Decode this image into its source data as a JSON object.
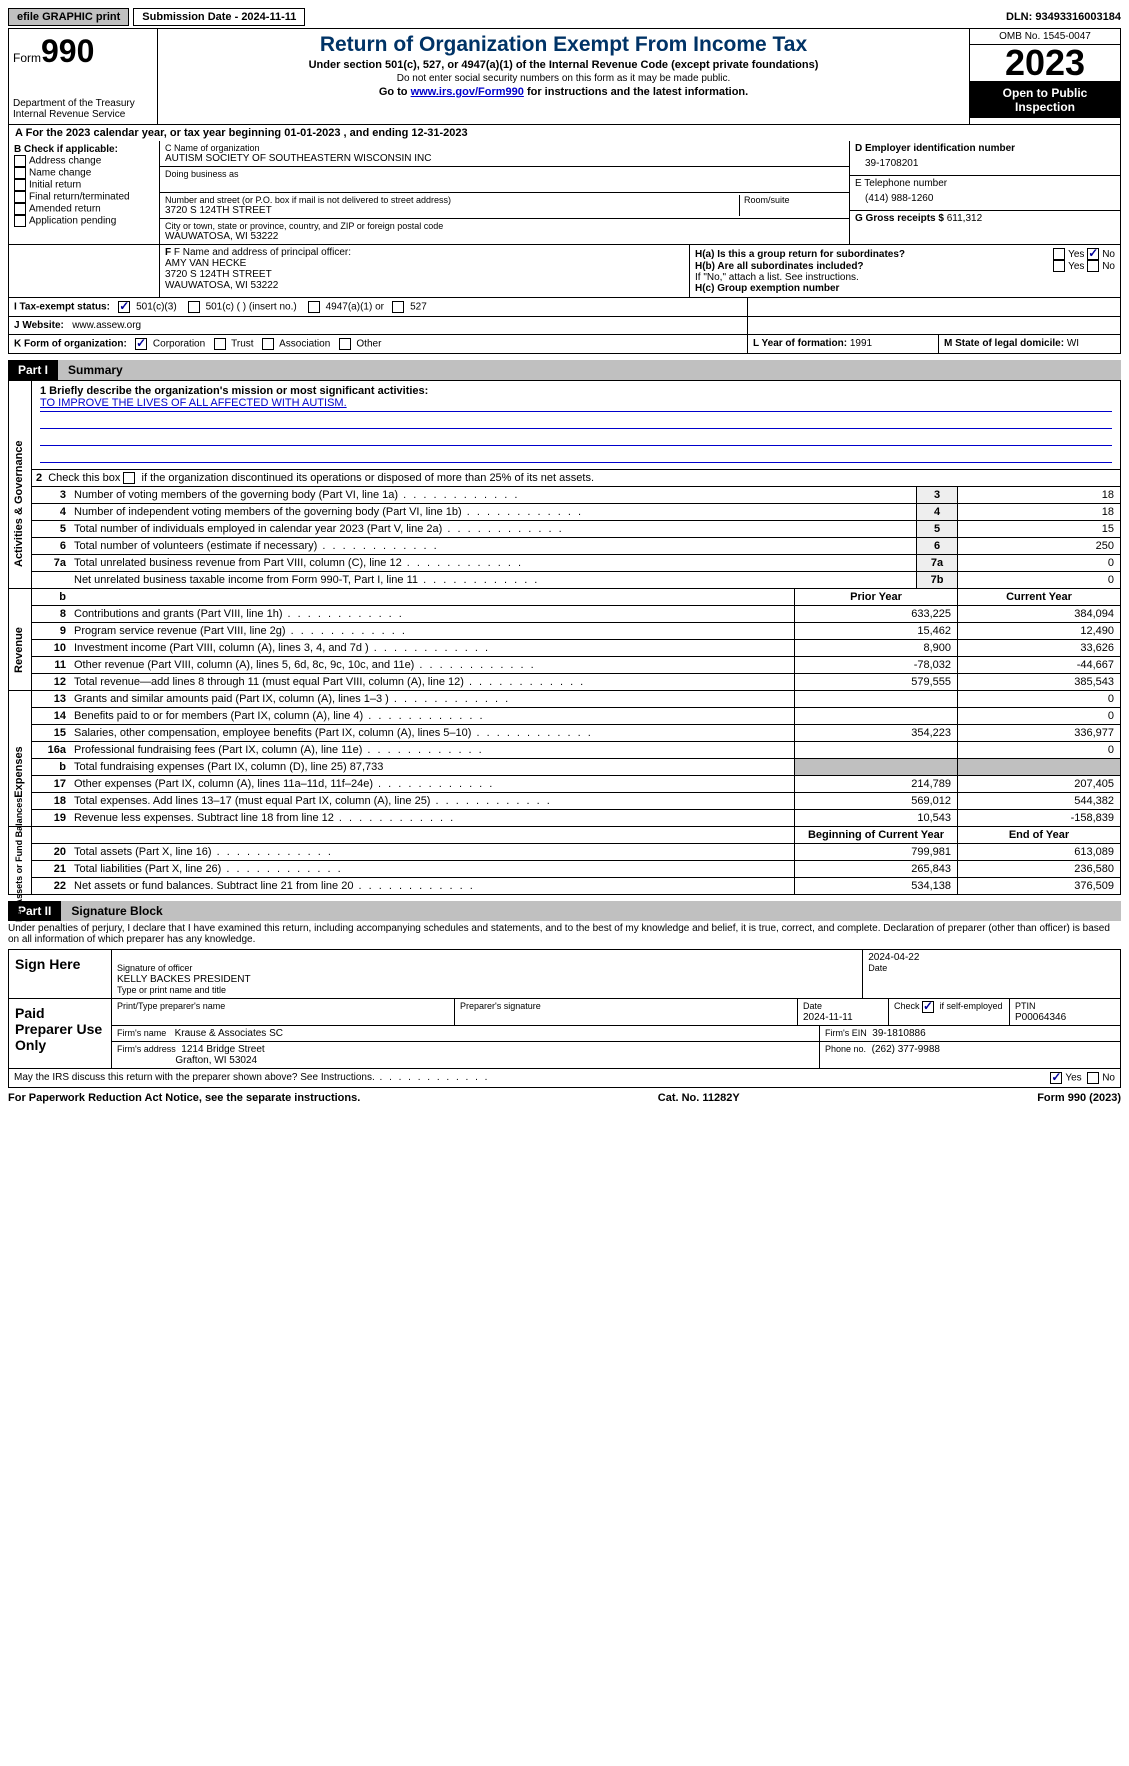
{
  "topbar": {
    "efile": "efile GRAPHIC print",
    "submission": "Submission Date - 2024-11-11",
    "dln": "DLN: 93493316003184"
  },
  "header": {
    "form_label": "Form",
    "form_num": "990",
    "dept": "Department of the Treasury\nInternal Revenue Service",
    "title": "Return of Organization Exempt From Income Tax",
    "sub1": "Under section 501(c), 527, or 4947(a)(1) of the Internal Revenue Code (except private foundations)",
    "sub2": "Do not enter social security numbers on this form as it may be made public.",
    "sub3_pre": "Go to ",
    "sub3_link": "www.irs.gov/Form990",
    "sub3_post": " for instructions and the latest information.",
    "omb": "OMB No. 1545-0047",
    "year": "2023",
    "open": "Open to Public Inspection"
  },
  "period": {
    "text_pre": "For the 2023 calendar year, or tax year beginning ",
    "begin": "01-01-2023",
    "mid": " , and ending ",
    "end": "12-31-2023"
  },
  "boxB": {
    "title": "B Check if applicable:",
    "items": [
      "Address change",
      "Name change",
      "Initial return",
      "Final return/terminated",
      "Amended return",
      "Application pending"
    ]
  },
  "boxC": {
    "label_name": "C Name of organization",
    "name": "AUTISM SOCIETY OF SOUTHEASTERN WISCONSIN INC",
    "dba_label": "Doing business as",
    "addr_label": "Number and street (or P.O. box if mail is not delivered to street address)",
    "addr": "3720 S 124TH STREET",
    "room_label": "Room/suite",
    "city_label": "City or town, state or province, country, and ZIP or foreign postal code",
    "city": "WAUWATOSA, WI  53222"
  },
  "boxD": {
    "label": "D Employer identification number",
    "val": "39-1708201"
  },
  "boxE": {
    "label": "E Telephone number",
    "val": "(414) 988-1260"
  },
  "boxG": {
    "label": "G Gross receipts $",
    "val": "611,312"
  },
  "boxF": {
    "label": "F  Name and address of principal officer:",
    "name": "AMY VAN HECKE",
    "addr1": "3720 S 124TH STREET",
    "addr2": "WAUWATOSA, WI  53222"
  },
  "boxH": {
    "a_label": "H(a)  Is this a group return for subordinates?",
    "a_yes": "Yes",
    "a_no": "No",
    "b_label": "H(b)  Are all subordinates included?",
    "b_note": "If \"No,\" attach a list. See instructions.",
    "c_label": "H(c)  Group exemption number"
  },
  "boxI": {
    "label": "I   Tax-exempt status:",
    "o1": "501(c)(3)",
    "o2": "501(c) (  ) (insert no.)",
    "o3": "4947(a)(1) or",
    "o4": "527"
  },
  "boxJ": {
    "label": "J   Website:",
    "val": "www.assew.org"
  },
  "boxK": {
    "label": "K Form of organization:",
    "opts": [
      "Corporation",
      "Trust",
      "Association",
      "Other"
    ]
  },
  "boxL": {
    "label": "L Year of formation:",
    "val": "1991"
  },
  "boxM": {
    "label": "M State of legal domicile:",
    "val": "WI"
  },
  "part1": {
    "num": "Part I",
    "title": "Summary"
  },
  "mission": {
    "q": "1   Briefly describe the organization's mission or most significant activities:",
    "a": "TO IMPROVE THE LIVES OF ALL AFFECTED WITH AUTISM."
  },
  "line2": "2   Check this box      if the organization discontinued its operations or disposed of more than 25% of its net assets.",
  "sidelabels": {
    "gov": "Activities & Governance",
    "rev": "Revenue",
    "exp": "Expenses",
    "net": "Net Assets or Fund Balances"
  },
  "gov_rows": [
    {
      "n": "3",
      "t": "Number of voting members of the governing body (Part VI, line 1a)",
      "box": "3",
      "v": "18"
    },
    {
      "n": "4",
      "t": "Number of independent voting members of the governing body (Part VI, line 1b)",
      "box": "4",
      "v": "18"
    },
    {
      "n": "5",
      "t": "Total number of individuals employed in calendar year 2023 (Part V, line 2a)",
      "box": "5",
      "v": "15"
    },
    {
      "n": "6",
      "t": "Total number of volunteers (estimate if necessary)",
      "box": "6",
      "v": "250"
    },
    {
      "n": "7a",
      "t": "Total unrelated business revenue from Part VIII, column (C), line 12",
      "box": "7a",
      "v": "0"
    },
    {
      "n": "",
      "t": "Net unrelated business taxable income from Form 990-T, Part I, line 11",
      "box": "7b",
      "v": "0"
    }
  ],
  "col_hdr": {
    "b": "b",
    "prior": "Prior Year",
    "current": "Current Year"
  },
  "rev_rows": [
    {
      "n": "8",
      "t": "Contributions and grants (Part VIII, line 1h)",
      "p": "633,225",
      "c": "384,094"
    },
    {
      "n": "9",
      "t": "Program service revenue (Part VIII, line 2g)",
      "p": "15,462",
      "c": "12,490"
    },
    {
      "n": "10",
      "t": "Investment income (Part VIII, column (A), lines 3, 4, and 7d )",
      "p": "8,900",
      "c": "33,626"
    },
    {
      "n": "11",
      "t": "Other revenue (Part VIII, column (A), lines 5, 6d, 8c, 9c, 10c, and 11e)",
      "p": "-78,032",
      "c": "-44,667"
    },
    {
      "n": "12",
      "t": "Total revenue—add lines 8 through 11 (must equal Part VIII, column (A), line 12)",
      "p": "579,555",
      "c": "385,543"
    }
  ],
  "exp_rows": [
    {
      "n": "13",
      "t": "Grants and similar amounts paid (Part IX, column (A), lines 1–3 )",
      "p": "",
      "c": "0"
    },
    {
      "n": "14",
      "t": "Benefits paid to or for members (Part IX, column (A), line 4)",
      "p": "",
      "c": "0"
    },
    {
      "n": "15",
      "t": "Salaries, other compensation, employee benefits (Part IX, column (A), lines 5–10)",
      "p": "354,223",
      "c": "336,977"
    },
    {
      "n": "16a",
      "t": "Professional fundraising fees (Part IX, column (A), line 11e)",
      "p": "",
      "c": "0"
    },
    {
      "n": "b",
      "t": "Total fundraising expenses (Part IX, column (D), line 25) 87,733",
      "p": "GRAY",
      "c": "GRAY"
    },
    {
      "n": "17",
      "t": "Other expenses (Part IX, column (A), lines 11a–11d, 11f–24e)",
      "p": "214,789",
      "c": "207,405"
    },
    {
      "n": "18",
      "t": "Total expenses. Add lines 13–17 (must equal Part IX, column (A), line 25)",
      "p": "569,012",
      "c": "544,382"
    },
    {
      "n": "19",
      "t": "Revenue less expenses. Subtract line 18 from line 12",
      "p": "10,543",
      "c": "-158,839"
    }
  ],
  "net_hdr": {
    "begin": "Beginning of Current Year",
    "end": "End of Year"
  },
  "net_rows": [
    {
      "n": "20",
      "t": "Total assets (Part X, line 16)",
      "p": "799,981",
      "c": "613,089"
    },
    {
      "n": "21",
      "t": "Total liabilities (Part X, line 26)",
      "p": "265,843",
      "c": "236,580"
    },
    {
      "n": "22",
      "t": "Net assets or fund balances. Subtract line 21 from line 20",
      "p": "534,138",
      "c": "376,509"
    }
  ],
  "part2": {
    "num": "Part II",
    "title": "Signature Block"
  },
  "perjury": "Under penalties of perjury, I declare that I have examined this return, including accompanying schedules and statements, and to the best of my knowledge and belief, it is true, correct, and complete. Declaration of preparer (other than officer) is based on all information of which preparer has any knowledge.",
  "sign": {
    "here": "Sign Here",
    "sig_label": "Signature of officer",
    "date_label": "Date",
    "date": "2024-04-22",
    "name": "KELLY BACKES PRESIDENT",
    "name_label": "Type or print name and title"
  },
  "paid": {
    "label": "Paid Preparer Use Only",
    "pname_label": "Print/Type preparer's name",
    "psig_label": "Preparer's signature",
    "pdate_label": "Date",
    "pdate": "2024-11-11",
    "check_label": "Check        if self-employed",
    "ptin_label": "PTIN",
    "ptin": "P00064346",
    "firm_label": "Firm's name",
    "firm": "Krause & Associates SC",
    "ein_label": "Firm's EIN",
    "ein": "39-1810886",
    "addr_label": "Firm's address",
    "addr1": "1214 Bridge Street",
    "addr2": "Grafton, WI  53024",
    "phone_label": "Phone no.",
    "phone": "(262) 377-9988"
  },
  "discuss": {
    "q": "May the IRS discuss this return with the preparer shown above? See Instructions.",
    "yes": "Yes",
    "no": "No"
  },
  "footer": {
    "left": "For Paperwork Reduction Act Notice, see the separate instructions.",
    "mid": "Cat. No. 11282Y",
    "right_pre": "Form ",
    "right_b": "990",
    "right_post": " (2023)"
  }
}
